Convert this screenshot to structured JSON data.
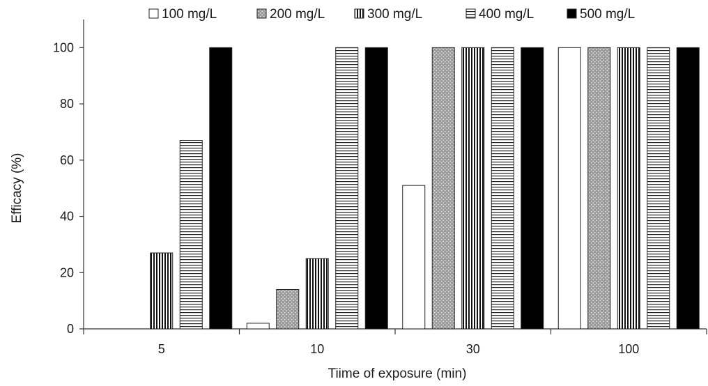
{
  "chart_data": {
    "type": "bar",
    "xlabel": "Tiime of  exposure (min)",
    "ylabel": "Efficacy (%)",
    "categories": [
      "5",
      "10",
      "30",
      "100"
    ],
    "ylim": [
      0,
      110
    ],
    "yticks": [
      0,
      20,
      40,
      60,
      80,
      100
    ],
    "grid": false,
    "legend_position": "top",
    "series": [
      {
        "name": "100 mg/L",
        "pattern": "white",
        "values": [
          0,
          2,
          51,
          100
        ]
      },
      {
        "name": "200 mg/L",
        "pattern": "dots",
        "values": [
          0,
          14,
          100,
          100
        ]
      },
      {
        "name": "300 mg/L",
        "pattern": "vertical-lines",
        "values": [
          27,
          25,
          100,
          100
        ]
      },
      {
        "name": "400 mg/L",
        "pattern": "horizontal-lines",
        "values": [
          67,
          100,
          100,
          100
        ]
      },
      {
        "name": "500 mg/L",
        "pattern": "solid-black",
        "values": [
          100,
          100,
          100,
          100
        ]
      }
    ]
  }
}
